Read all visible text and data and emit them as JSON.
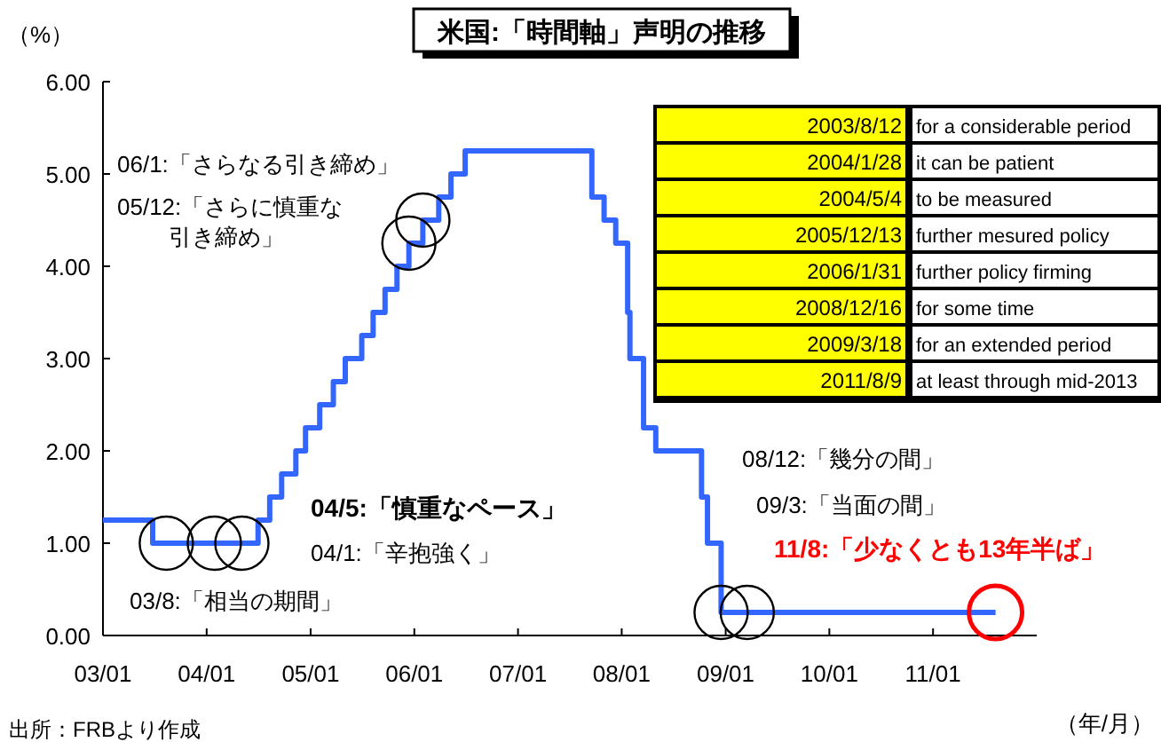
{
  "chart_data": [
    {
      "type": "step",
      "title": "米国:「時間軸」声明の推移",
      "ylabel": "（%）",
      "xlabel": "（年/月）",
      "xlim": [
        "2003-01-01",
        "2012-01-01"
      ],
      "ylim": [
        0,
        6
      ],
      "xticks": [
        {
          "value": "2003-01-01",
          "label": "03/01"
        },
        {
          "value": "2004-01-01",
          "label": "04/01"
        },
        {
          "value": "2005-01-01",
          "label": "05/01"
        },
        {
          "value": "2006-01-01",
          "label": "06/01"
        },
        {
          "value": "2007-01-01",
          "label": "07/01"
        },
        {
          "value": "2008-01-01",
          "label": "08/01"
        },
        {
          "value": "2009-01-01",
          "label": "09/01"
        },
        {
          "value": "2010-01-01",
          "label": "10/01"
        },
        {
          "value": "2011-01-01",
          "label": "11/01"
        }
      ],
      "yticks": [
        {
          "value": 0,
          "label": "0.00"
        },
        {
          "value": 1,
          "label": "1.00"
        },
        {
          "value": 2,
          "label": "2.00"
        },
        {
          "value": 3,
          "label": "3.00"
        },
        {
          "value": 4,
          "label": "4.00"
        },
        {
          "value": 5,
          "label": "5.00"
        },
        {
          "value": 6,
          "label": "6.00"
        }
      ],
      "grid": false,
      "series": [
        {
          "color": "#3366ff",
          "marker": "none",
          "x": [
            "2003-01-01",
            "2003-06-25",
            "2004-06-30",
            "2004-08-10",
            "2004-09-21",
            "2004-11-10",
            "2004-12-14",
            "2005-02-02",
            "2005-03-22",
            "2005-05-03",
            "2005-06-30",
            "2005-08-09",
            "2005-09-20",
            "2005-11-01",
            "2005-12-13",
            "2006-01-31",
            "2006-03-28",
            "2006-05-10",
            "2006-06-29",
            "2007-09-18",
            "2007-10-31",
            "2007-12-11",
            "2008-01-22",
            "2008-01-30",
            "2008-03-18",
            "2008-04-30",
            "2008-10-08",
            "2008-10-29",
            "2008-12-16",
            "2011-08-09"
          ],
          "values": [
            1.25,
            1.0,
            1.25,
            1.5,
            1.75,
            2.0,
            2.25,
            2.5,
            2.75,
            3.0,
            3.25,
            3.5,
            3.75,
            4.0,
            4.25,
            4.5,
            4.75,
            5.0,
            5.25,
            4.75,
            4.5,
            4.25,
            3.5,
            3.0,
            2.25,
            2.0,
            1.5,
            1.0,
            0.25,
            0.25
          ]
        },
        {
          "type": "scatter",
          "marker": "circle",
          "x": [
            "2003-08-12",
            "2004-01-28",
            "2004-05-04",
            "2005-12-13",
            "2006-01-31",
            "2008-12-16",
            "2009-03-18",
            "2011-08-09"
          ],
          "values": [
            1.0,
            1.0,
            1.0,
            4.25,
            4.5,
            0.25,
            0.25,
            0.25
          ],
          "colors": [
            "#000000",
            "#000000",
            "#000000",
            "#000000",
            "#000000",
            "#000000",
            "#000000",
            "#ff0000"
          ]
        }
      ],
      "annotations": [
        "06/1:「さらなる引き締め」",
        "05/12:「さらに慎重な引き締め」",
        "04/5:「慎重なペース」",
        "04/1:「辛抱強く」",
        "03/8:「相当の期間」",
        "08/12:「幾分の間」",
        "09/3:「当面の間」",
        "11/8:「少なくとも13年半ば」",
        "出所：FRBより作成"
      ]
    },
    {
      "type": "other",
      "annotations": [
        "2003/8/12",
        "for a considerable period",
        "2004/1/28",
        "it can be patient",
        "2004/5/4",
        "to be measured",
        "2005/12/13",
        "further mesured policy",
        "2006/1/31",
        "further policy firming",
        "2008/12/16",
        "for some time",
        "2009/3/18",
        "for an extended period",
        "2011/8/9",
        "at least through mid-2013"
      ]
    }
  ]
}
